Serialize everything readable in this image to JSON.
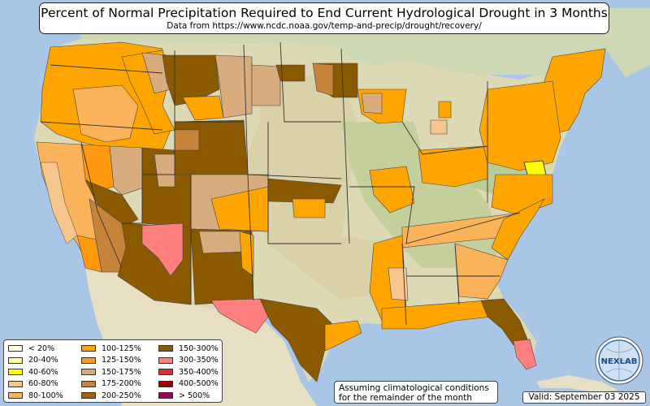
{
  "header": {
    "title": "Percent of Normal Precipitation Required to End Current Hydrological Drought in 3 Months",
    "subtitle": "Data from https://www.ncdc.noaa.gov/temp-and-precip/drought/recovery/"
  },
  "legend": {
    "items": [
      {
        "label": "< 20%",
        "color": "#ffffe0"
      },
      {
        "label": "20-40%",
        "color": "#ffffa0"
      },
      {
        "label": "40-60%",
        "color": "#ffff00"
      },
      {
        "label": "60-80%",
        "color": "#f7c68c"
      },
      {
        "label": "80-100%",
        "color": "#fbb35a"
      },
      {
        "label": "100-125%",
        "color": "#ffa500"
      },
      {
        "label": "125-150%",
        "color": "#ff9a10"
      },
      {
        "label": "150-175%",
        "color": "#d8ac7c"
      },
      {
        "label": "175-200%",
        "color": "#c6843a"
      },
      {
        "label": "200-250%",
        "color": "#a0620a"
      },
      {
        "label": "150-300%",
        "color": "#8b5a00"
      },
      {
        "label": "300-350%",
        "color": "#ff7f7f"
      },
      {
        "label": "350-400%",
        "color": "#d93030"
      },
      {
        "label": "400-500%",
        "color": "#a00000"
      },
      {
        "label": "> 500%",
        "color": "#a0005a"
      }
    ]
  },
  "note": {
    "line1": "Assuming climatological conditions",
    "line2": "for the remainder of the month"
  },
  "valid": "Valid: September 03 2025",
  "logo": {
    "text": "NEXLAB",
    "icon": "globe-icon"
  },
  "colors": {
    "ocean": "#a9c6e6",
    "land": "#dcd9b4",
    "no_drought_green": "#b9cc96",
    "mexico": "#e6dfc3",
    "canada": "#cfd8b5"
  }
}
